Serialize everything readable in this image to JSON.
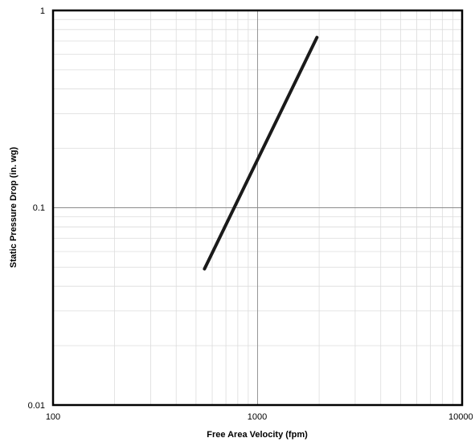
{
  "chart_data": {
    "type": "line",
    "title": "",
    "xlabel": "Free Area Velocity (fpm)",
    "ylabel": "Static Pressure Drop (in. wg)",
    "x_scale": "log",
    "y_scale": "log",
    "xlim": [
      100,
      10000
    ],
    "ylim": [
      0.01,
      1
    ],
    "x_ticks": [
      {
        "value": 100,
        "label": "100"
      },
      {
        "value": 1000,
        "label": "1000"
      },
      {
        "value": 10000,
        "label": "10000"
      }
    ],
    "y_ticks": [
      {
        "value": 0.01,
        "label": "0.01"
      },
      {
        "value": 0.1,
        "label": "0.1"
      },
      {
        "value": 1,
        "label": "1"
      }
    ],
    "grid": true,
    "legend": "none",
    "series": [
      {
        "color": "#1a1a1a",
        "x": [
          550,
          1950
        ],
        "y": [
          0.049,
          0.73
        ]
      }
    ]
  }
}
